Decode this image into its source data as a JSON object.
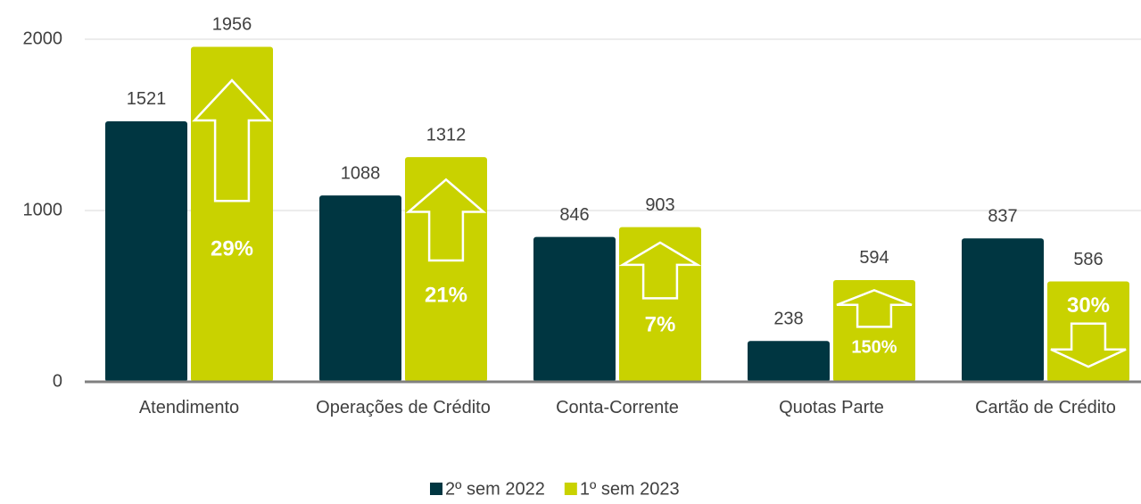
{
  "chart_data": {
    "type": "bar",
    "categories": [
      "Atendimento",
      "Operações de Crédito",
      "Conta-Corrente",
      "Quotas Parte",
      "Cartão de Crédito"
    ],
    "series": [
      {
        "name": "2º sem 2022",
        "color": "#003641",
        "values": [
          1521,
          1088,
          846,
          238,
          837
        ]
      },
      {
        "name": "1º sem 2023",
        "color": "#c9d200",
        "values": [
          1956,
          1312,
          903,
          594,
          586
        ]
      }
    ],
    "annotations": [
      {
        "text": "29%",
        "direction": "up"
      },
      {
        "text": "21%",
        "direction": "up"
      },
      {
        "text": "7%",
        "direction": "up"
      },
      {
        "text": "150%",
        "direction": "up"
      },
      {
        "text": "30%",
        "direction": "down"
      }
    ],
    "ylim": [
      0,
      2000
    ],
    "yticks": [
      0,
      1000,
      2000
    ],
    "grid": true,
    "legend": "bottom"
  }
}
